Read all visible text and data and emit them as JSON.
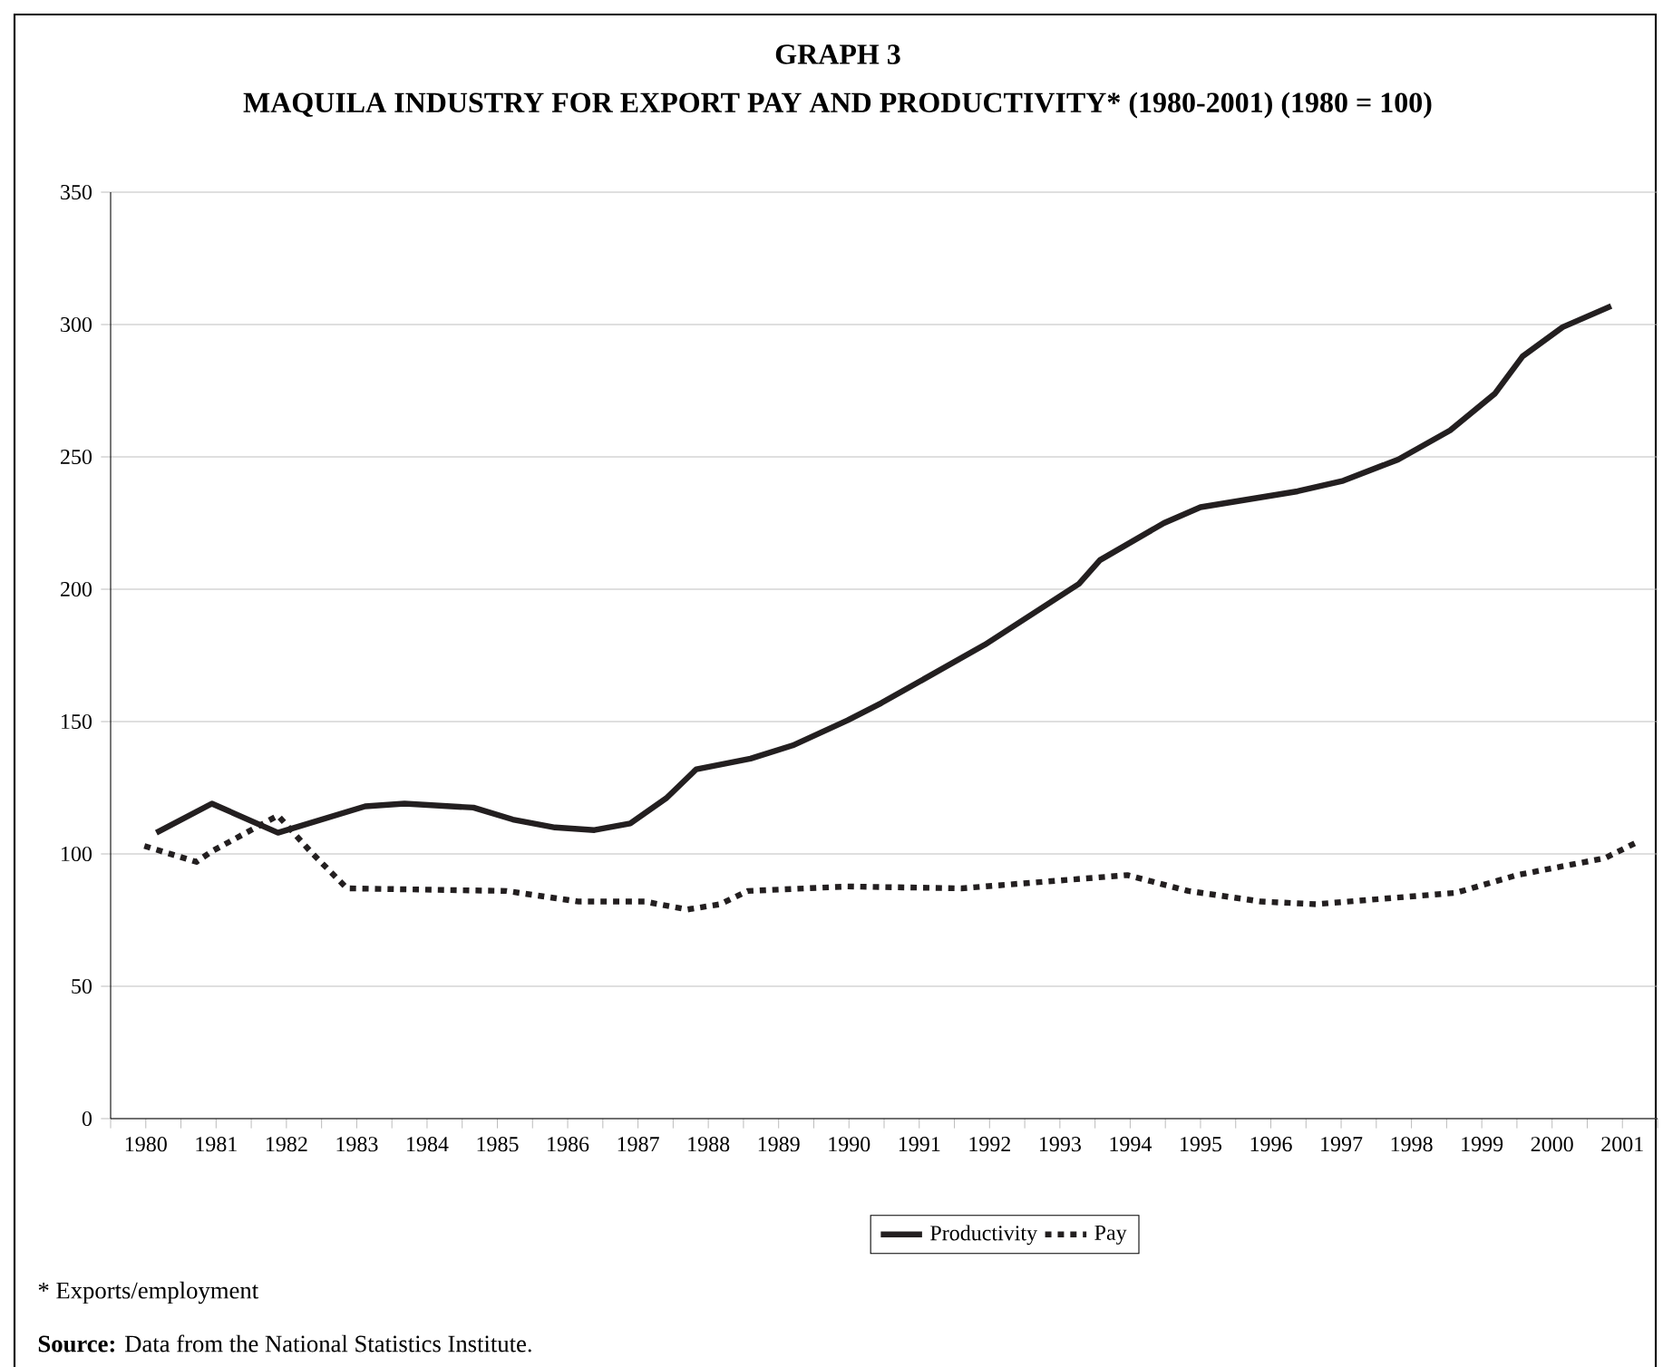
{
  "chart_data": {
    "type": "line",
    "title": "GRAPH 3",
    "subtitle": "MAQUILA INDUSTRY FOR EXPORT PAY AND PRODUCTIVITY* (1980-2001) (1980 = 100)",
    "annotations": [
      "* Exports/employment",
      "**Source:** Data from the National Statistics Institute."
    ],
    "xlim": [
      1979.5,
      2001.5
    ],
    "xticks": [
      {
        "value": 1979.5,
        "label": null
      },
      {
        "value": 1980,
        "label": "1980"
      },
      {
        "value": 1980.5,
        "label": null
      },
      {
        "value": 1981,
        "label": "1981"
      },
      {
        "value": 1981.5,
        "label": null
      },
      {
        "value": 1982,
        "label": "1982"
      },
      {
        "value": 1982.5,
        "label": null
      },
      {
        "value": 1983,
        "label": "1983"
      },
      {
        "value": 1983.5,
        "label": null
      },
      {
        "value": 1984,
        "label": "1984"
      },
      {
        "value": 1984.5,
        "label": null
      },
      {
        "value": 1985,
        "label": "1985"
      },
      {
        "value": 1985.5,
        "label": null
      },
      {
        "value": 1986,
        "label": "1986"
      },
      {
        "value": 1986.5,
        "label": null
      },
      {
        "value": 1987,
        "label": "1987"
      },
      {
        "value": 1987.5,
        "label": null
      },
      {
        "value": 1988,
        "label": "1988"
      },
      {
        "value": 1988.5,
        "label": null
      },
      {
        "value": 1989,
        "label": "1989"
      },
      {
        "value": 1989.5,
        "label": null
      },
      {
        "value": 1990,
        "label": "1990"
      },
      {
        "value": 1990.5,
        "label": null
      },
      {
        "value": 1991,
        "label": "1991"
      },
      {
        "value": 1991.5,
        "label": null
      },
      {
        "value": 1992,
        "label": "1992"
      },
      {
        "value": 1992.5,
        "label": null
      },
      {
        "value": 1993,
        "label": "1993"
      },
      {
        "value": 1993.5,
        "label": null
      },
      {
        "value": 1994,
        "label": "1994"
      },
      {
        "value": 1994.5,
        "label": null
      },
      {
        "value": 1995,
        "label": "1995"
      },
      {
        "value": 1995.5,
        "label": null
      },
      {
        "value": 1996,
        "label": "1996"
      },
      {
        "value": 1996.5,
        "label": null
      },
      {
        "value": 1997,
        "label": "1997"
      },
      {
        "value": 1997.5,
        "label": null
      },
      {
        "value": 1998,
        "label": "1998"
      },
      {
        "value": 1998.5,
        "label": null
      },
      {
        "value": 1999,
        "label": "1999"
      },
      {
        "value": 1999.5,
        "label": null
      },
      {
        "value": 2000,
        "label": "2000"
      },
      {
        "value": 2000.5,
        "label": null
      },
      {
        "value": 2001,
        "label": "2001"
      },
      {
        "value": 2001.5,
        "label": null
      }
    ],
    "ylim": [
      0,
      350
    ],
    "yticks": [
      0,
      50,
      100,
      150,
      200,
      250,
      300,
      350
    ],
    "grid": "y",
    "legend": "bottom",
    "series": [
      {
        "name": "Productivity",
        "color": "#231f20",
        "line_style": "solid",
        "x": [
          1980.15,
          1980.94,
          1981.88,
          1983.12,
          1983.68,
          1984.66,
          1985.22,
          1985.82,
          1986.38,
          1986.89,
          1987.4,
          1987.83,
          1988.6,
          1989.2,
          1989.98,
          1990.46,
          1991.93,
          1993.27,
          1993.57,
          1994.48,
          1995.0,
          1996.38,
          1997.03,
          1997.81,
          1998.55,
          1999.19,
          1999.58,
          2000.15,
          2000.84
        ],
        "values": [
          108,
          119,
          108,
          118,
          119,
          117.5,
          113,
          110,
          109,
          111.5,
          121,
          132,
          136,
          141,
          150.5,
          157,
          179,
          202,
          211,
          225,
          231,
          237,
          241,
          249,
          260,
          274,
          288,
          299,
          307
        ]
      },
      {
        "name": "Pay",
        "color": "#231f20",
        "line_style": "dotted",
        "x": [
          1979.98,
          1980.72,
          1980.94,
          1981.88,
          1982.35,
          1982.86,
          1985.13,
          1986.16,
          1987.1,
          1987.7,
          1988.17,
          1988.56,
          1989.98,
          1991.6,
          1993.96,
          1994.83,
          1995.86,
          1996.64,
          1998.63,
          1999.5,
          2000.75,
          2001.23
        ],
        "values": [
          103,
          97,
          101,
          114.5,
          100.7,
          87,
          86,
          82,
          82,
          79,
          81,
          86,
          87.7,
          87,
          92,
          86,
          82,
          81,
          85.3,
          92,
          98.4,
          104.7
        ]
      }
    ]
  }
}
